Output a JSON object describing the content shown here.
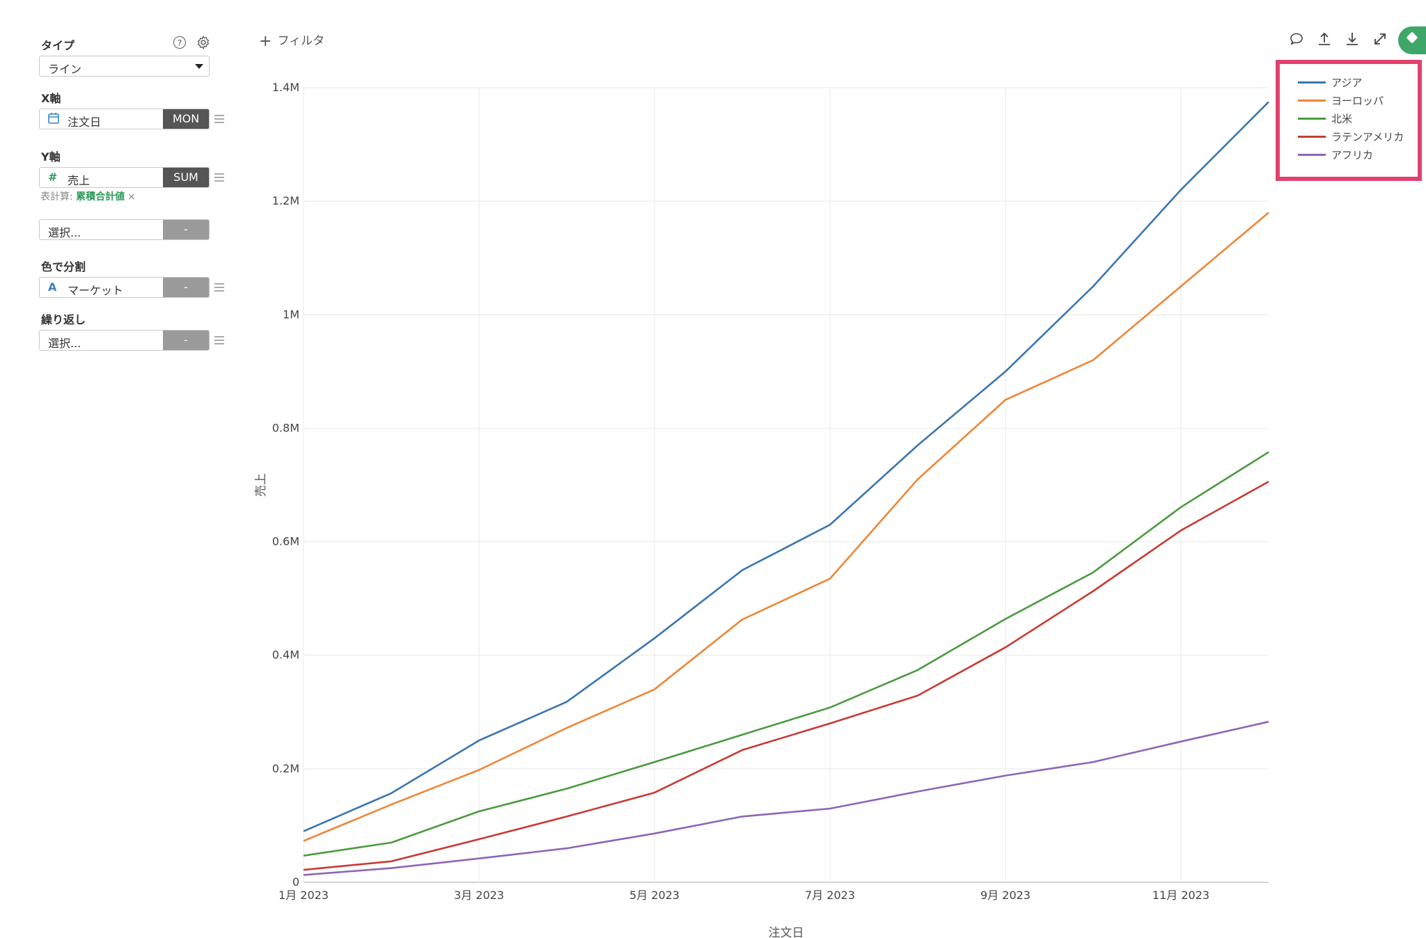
{
  "sidebar": {
    "type_label": "タイプ",
    "type_value": "ライン",
    "x_label": "X軸",
    "x_field": "注文日",
    "x_agg": "MON",
    "y_label": "Y軸",
    "y_field": "売上",
    "y_agg": "SUM",
    "table_calc_prefix": "表計算:",
    "table_calc_value": "累積合計値",
    "table_calc_clear": "×",
    "extra_select": "選択...",
    "extra_tag": "-",
    "color_label": "色で分割",
    "color_field": "マーケット",
    "color_tag": "-",
    "repeat_label": "繰り返し",
    "repeat_select": "選択...",
    "repeat_tag": "-"
  },
  "toolbar": {
    "filter_label": "フィルタ",
    "icons": [
      "comment-icon",
      "upload-icon",
      "download-icon",
      "expand-icon",
      "avatar"
    ]
  },
  "chart_data": {
    "type": "line",
    "xlabel": "注文日",
    "ylabel": "売上",
    "x": [
      "2023-01",
      "2023-02",
      "2023-03",
      "2023-04",
      "2023-05",
      "2023-06",
      "2023-07",
      "2023-08",
      "2023-09",
      "2023-10",
      "2023-11",
      "2023-12"
    ],
    "x_tick_labels": [
      "1月 2023",
      "3月 2023",
      "5月 2023",
      "7月 2023",
      "9月 2023",
      "11月 2023"
    ],
    "y_tick_labels": [
      "0",
      "0.2M",
      "0.4M",
      "0.6M",
      "0.8M",
      "1M",
      "1.2M",
      "1.4M"
    ],
    "ylim": [
      0,
      1400000
    ],
    "grid": true,
    "legend_position": "top-right",
    "series": [
      {
        "name": "アジア",
        "color": "#3a75b0",
        "values": [
          90000,
          157000,
          250000,
          318000,
          430000,
          550000,
          630000,
          770000,
          900000,
          1050000,
          1220000,
          1375000
        ]
      },
      {
        "name": "ヨーロッパ",
        "color": "#ef8636",
        "values": [
          73000,
          137000,
          198000,
          272000,
          340000,
          463000,
          535000,
          710000,
          850000,
          920000,
          1050000,
          1180000
        ]
      },
      {
        "name": "北米",
        "color": "#4a9a3f",
        "values": [
          47000,
          70000,
          125000,
          165000,
          212000,
          260000,
          308000,
          374000,
          464000,
          546000,
          661000,
          758000
        ]
      },
      {
        "name": "ラテンアメリカ",
        "color": "#c83a33",
        "values": [
          22000,
          37000,
          76000,
          116000,
          158000,
          233000,
          280000,
          329000,
          414000,
          513000,
          620000,
          706000
        ]
      },
      {
        "name": "アフリカ",
        "color": "#8c65b8",
        "values": [
          13000,
          25000,
          42000,
          60000,
          86000,
          116000,
          130000,
          160000,
          188000,
          212000,
          248000,
          283000
        ]
      }
    ]
  }
}
